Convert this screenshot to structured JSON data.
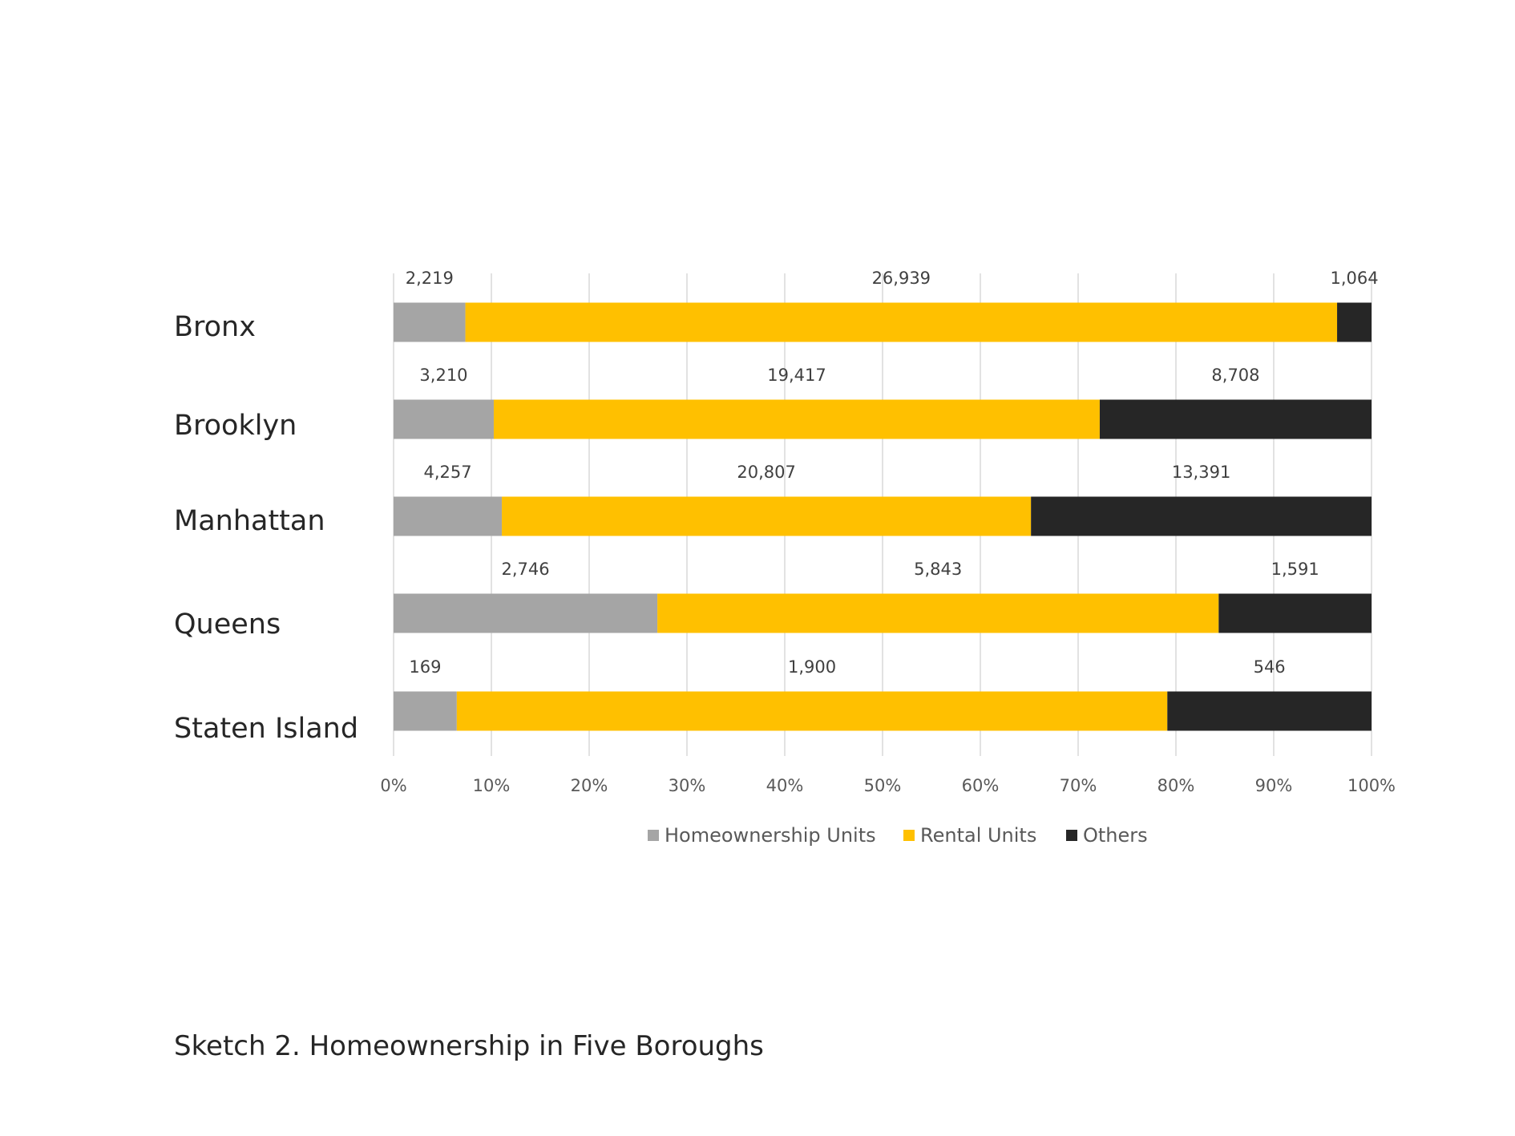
{
  "caption": "Sketch 2. Homeownership in Five Boroughs",
  "chart_data": {
    "type": "bar",
    "orientation": "horizontal",
    "stacking": "percent",
    "categories": [
      "Bronx",
      "Brooklyn",
      "Manhattan",
      "Queens",
      "Staten Island"
    ],
    "series": [
      {
        "name": "Homeownership Units",
        "color": "#a5a5a5",
        "values": [
          2219,
          3210,
          4257,
          2746,
          169
        ]
      },
      {
        "name": "Rental Units",
        "color": "#ffc000",
        "values": [
          26939,
          19417,
          20807,
          5843,
          1900
        ]
      },
      {
        "name": "Others",
        "color": "#262626",
        "values": [
          1064,
          8708,
          13391,
          1591,
          546
        ]
      }
    ],
    "data_labels": [
      [
        "2,219",
        "3,210",
        "4,257",
        "2,746",
        "169"
      ],
      [
        "26,939",
        "19,417",
        "20,807",
        "5,843",
        "1,900"
      ],
      [
        "1,064",
        "8,708",
        "13,391",
        "1,591",
        "546"
      ]
    ],
    "x_ticks": [
      "0%",
      "10%",
      "20%",
      "30%",
      "40%",
      "50%",
      "60%",
      "70%",
      "80%",
      "90%",
      "100%"
    ],
    "xlim": [
      0,
      100
    ],
    "grid": true,
    "legend_position": "bottom"
  }
}
